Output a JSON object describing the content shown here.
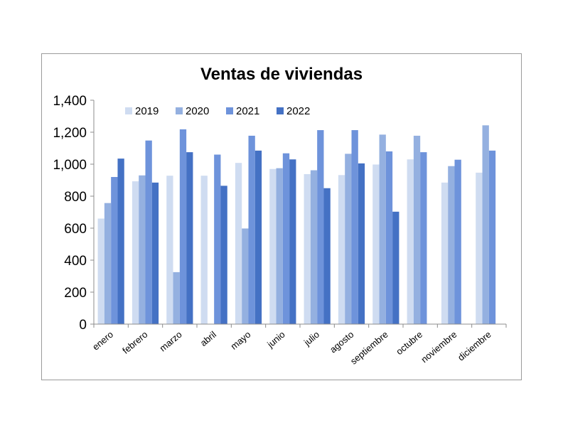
{
  "chart_data": {
    "type": "bar",
    "title": "Ventas de viviendas",
    "xlabel": "",
    "ylabel": "",
    "ylim": [
      0,
      1400
    ],
    "yticks": [
      0,
      200,
      400,
      600,
      800,
      1000,
      1200,
      1400
    ],
    "ytick_labels": [
      "0",
      "200",
      "400",
      "600",
      "800",
      "1,000",
      "1,200",
      "1,400"
    ],
    "grid": false,
    "legend_position": "top-left",
    "categories": [
      "enero",
      "febrero",
      "marzo",
      "abril",
      "mayo",
      "junio",
      "julio",
      "agosto",
      "septiembre",
      "octubre",
      "noviembre",
      "diciembre"
    ],
    "series": [
      {
        "name": "2019",
        "color": "#cfdcf1",
        "values": [
          660,
          893,
          928,
          928,
          1008,
          970,
          938,
          932,
          998,
          1030,
          885,
          947
        ]
      },
      {
        "name": "2020",
        "color": "#94b0e0",
        "values": [
          757,
          930,
          325,
          null,
          598,
          975,
          962,
          1065,
          1185,
          1178,
          988,
          1243
        ]
      },
      {
        "name": "2021",
        "color": "#6e93db",
        "values": [
          920,
          1148,
          1218,
          1060,
          1178,
          1068,
          1213,
          1213,
          1080,
          1075,
          1028,
          1085
        ]
      },
      {
        "name": "2022",
        "color": "#4471c4",
        "values": [
          1035,
          885,
          1075,
          865,
          1085,
          1030,
          850,
          1005,
          703,
          null,
          null,
          null
        ]
      }
    ]
  }
}
